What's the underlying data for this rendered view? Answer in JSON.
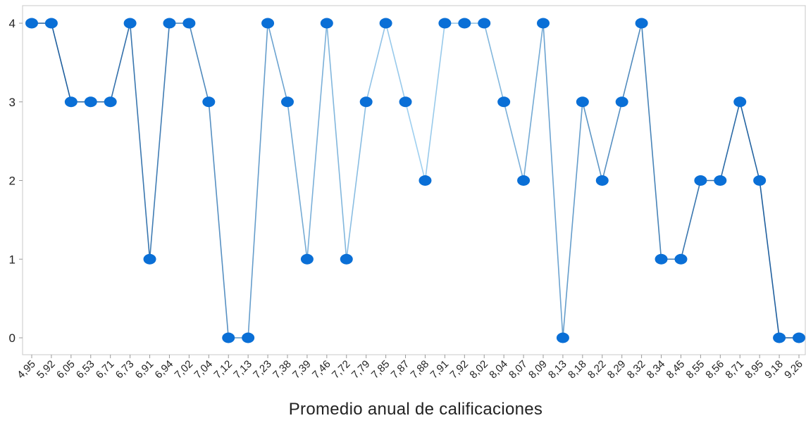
{
  "chart_data": {
    "type": "line",
    "title": "",
    "xlabel": "Promedio anual de calificaciones",
    "ylabel": "",
    "ylim": [
      0,
      4
    ],
    "yticks": [
      0,
      1,
      2,
      3,
      4
    ],
    "grid": false,
    "legend": "none",
    "categories": [
      "4,95",
      "5,92",
      "6,05",
      "6,53",
      "6,71",
      "6,73",
      "6,91",
      "6,94",
      "7,02",
      "7,04",
      "7,12",
      "7,13",
      "7,23",
      "7,38",
      "7,39",
      "7,46",
      "7,72",
      "7,79",
      "7,85",
      "7,87",
      "7,88",
      "7,91",
      "7,92",
      "8,02",
      "8,04",
      "8,07",
      "8,09",
      "8,13",
      "8,18",
      "8,22",
      "8,29",
      "8,32",
      "8,34",
      "8,45",
      "8,55",
      "8,56",
      "8,71",
      "8,95",
      "9,18",
      "9,26"
    ],
    "values": [
      4,
      4,
      3,
      3,
      3,
      4,
      1,
      4,
      4,
      3,
      0,
      0,
      4,
      3,
      1,
      4,
      1,
      3,
      4,
      3,
      2,
      4,
      4,
      4,
      3,
      2,
      4,
      0,
      3,
      2,
      3,
      4,
      1,
      1,
      2,
      2,
      3,
      2,
      0,
      0
    ],
    "colors": {
      "marker": "#0a6fd6",
      "line_dark": "#1f5f9e",
      "line_light": "#9fd0f0",
      "axis": "#c8c8c8",
      "text": "#222222"
    }
  }
}
